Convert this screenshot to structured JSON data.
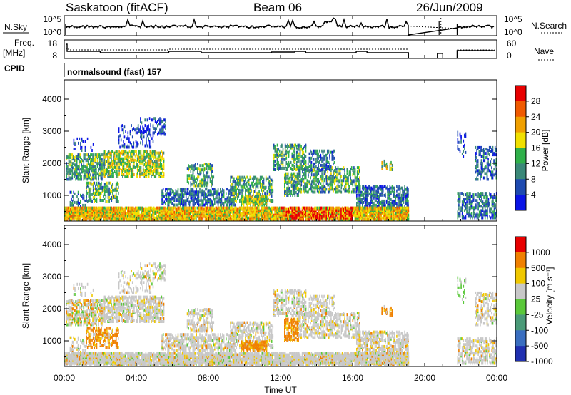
{
  "header": {
    "site": "Saskatoon (fitACF)",
    "beam": "Beam 06",
    "date": "26/Jun/2009"
  },
  "noise_panel": {
    "left_label": "N.Sky",
    "right_label": "N.Search",
    "left_ticks": [
      "10^5",
      "10^0"
    ],
    "right_ticks": [
      "10^5",
      "10^0"
    ]
  },
  "freq_panel": {
    "left_label_1": "Freq.",
    "left_label_2": "[MHz]",
    "right_label": "Nave",
    "left_ticks": [
      "18",
      "8"
    ],
    "right_ticks": [
      "60",
      "0"
    ]
  },
  "cpid": {
    "label": "CPID",
    "value": "normalsound (fast) 157"
  },
  "chart_data": [
    {
      "type": "heatmap",
      "name": "Power",
      "ylabel": "Slant Range [km]",
      "y_ticks": [
        "4000",
        "3000",
        "2000",
        "1000"
      ],
      "ylim": [
        200,
        4600
      ],
      "colorbar_label": "Power [dB]",
      "colorbar_ticks": [
        "28",
        "24",
        "20",
        "16",
        "12",
        "8",
        "4"
      ],
      "colors": [
        "#0a14e6",
        "#1e4ab0",
        "#3a8878",
        "#2fb04a",
        "#f0e000",
        "#f0a000",
        "#f05a00",
        "#e80000"
      ]
    },
    {
      "type": "heatmap",
      "name": "Velocity",
      "ylabel": "Slant Range [km]",
      "y_ticks": [
        "4000",
        "3000",
        "2000",
        "1000"
      ],
      "ylim": [
        200,
        4600
      ],
      "colorbar_label": "Velocity [m s⁻¹]",
      "colorbar_ticks": [
        "1000",
        "500",
        "100",
        "25",
        "-25",
        "-100",
        "-500",
        "-1000"
      ],
      "colors": [
        "#2030b0",
        "#3a6ec0",
        "#4a9a78",
        "#5ac83a",
        "#c8c8c8",
        "#f0c800",
        "#f08000",
        "#e80000"
      ]
    }
  ],
  "x_axis": {
    "label": "Time UT",
    "ticks": [
      "00:00",
      "04:00",
      "08:00",
      "12:00",
      "16:00",
      "20:00",
      "00:00"
    ]
  }
}
